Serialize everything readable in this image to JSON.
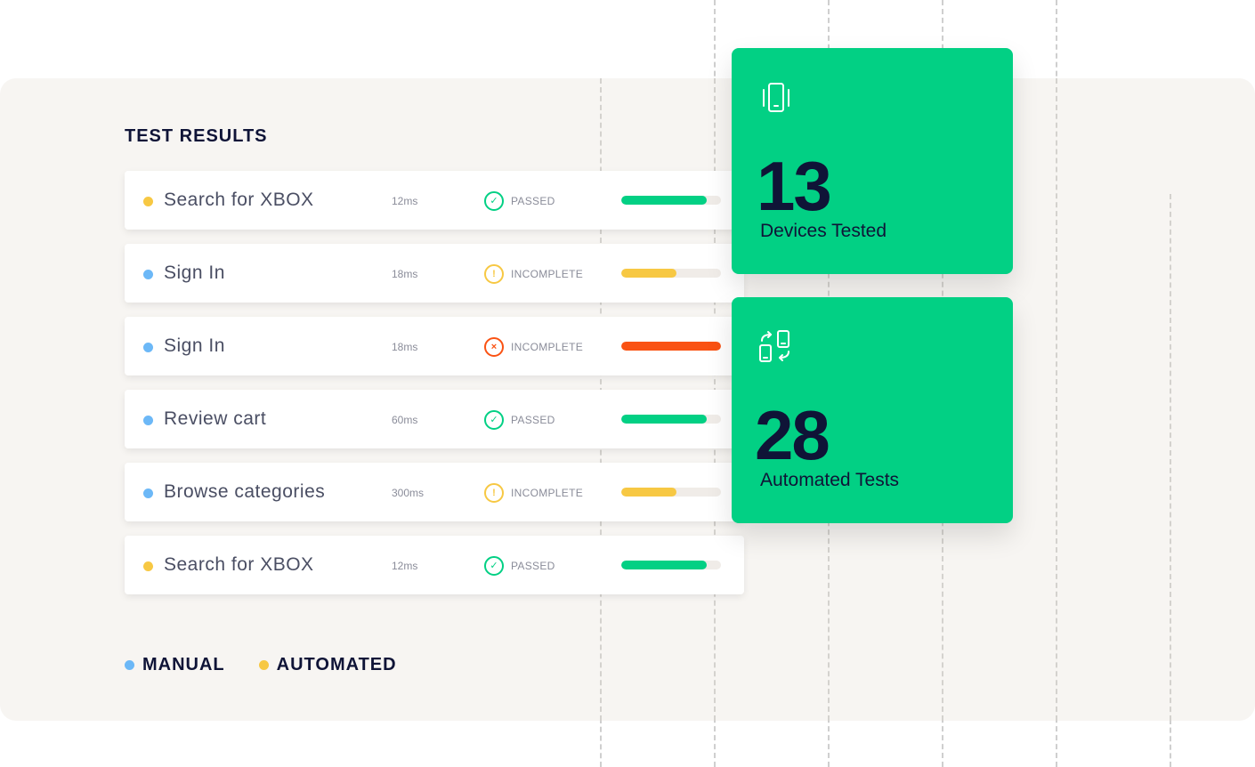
{
  "title": "TEST RESULTS",
  "colors": {
    "manual": "#6cb8f7",
    "automated": "#f7c843",
    "passed": "#02d084",
    "warning": "#f7c843",
    "failed": "#fa5213",
    "card": "#02d084"
  },
  "rows": [
    {
      "name": "Search for XBOX",
      "type": "automated",
      "time": "12ms",
      "status": "PASSED",
      "status_icon": "check-circle-icon",
      "progress": 0.86,
      "bar_color": "#02d084"
    },
    {
      "name": "Sign In",
      "type": "manual",
      "time": "18ms",
      "status": "INCOMPLETE",
      "status_icon": "warning-circle-icon",
      "progress": 0.55,
      "bar_color": "#f7c843"
    },
    {
      "name": "Sign In",
      "type": "manual",
      "time": "18ms",
      "status": "INCOMPLETE",
      "status_icon": "error-circle-icon",
      "progress": 1.0,
      "bar_color": "#fa5213"
    },
    {
      "name": "Review cart",
      "type": "manual",
      "time": "60ms",
      "status": "PASSED",
      "status_icon": "check-circle-icon",
      "progress": 0.86,
      "bar_color": "#02d084"
    },
    {
      "name": "Browse categories",
      "type": "manual",
      "time": "300ms",
      "status": "INCOMPLETE",
      "status_icon": "warning-circle-icon",
      "progress": 0.55,
      "bar_color": "#f7c843"
    },
    {
      "name": "Search for XBOX",
      "type": "automated",
      "time": "12ms",
      "status": "PASSED",
      "status_icon": "check-circle-icon",
      "progress": 0.86,
      "bar_color": "#02d084"
    }
  ],
  "cards": [
    {
      "icon": "vibrating-phone-icon",
      "number": "13",
      "label": "Devices Tested"
    },
    {
      "icon": "device-sync-icon",
      "number": "28",
      "label": "Automated Tests"
    }
  ],
  "legend": [
    {
      "label": "MANUAL",
      "color": "#6cb8f7"
    },
    {
      "label": "AUTOMATED",
      "color": "#f7c843"
    }
  ]
}
